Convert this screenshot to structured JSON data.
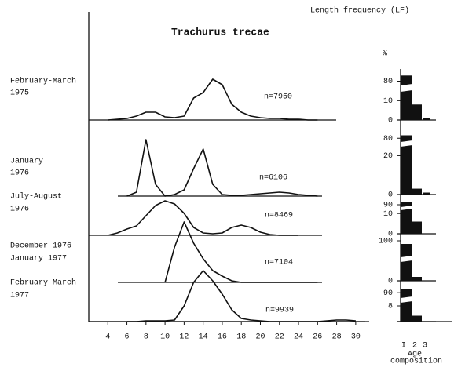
{
  "chart_data": [
    {
      "type": "line",
      "header": "Length frequency (LF)",
      "title": "Trachurus trecae",
      "x": [
        4,
        5,
        6,
        7,
        8,
        9,
        10,
        11,
        12,
        13,
        14,
        15,
        16,
        17,
        18,
        19,
        20,
        21,
        22,
        23,
        24,
        25,
        26,
        27,
        28,
        29,
        30
      ],
      "xlim": [
        2,
        31
      ],
      "xticks": [
        4,
        6,
        8,
        10,
        12,
        14,
        16,
        18,
        20,
        22,
        24,
        26,
        28,
        30
      ],
      "color": "#111111",
      "series": [
        {
          "name": [
            "February-March",
            "1975"
          ],
          "n_label": "n=7950",
          "values": [
            0,
            1,
            2,
            5,
            10,
            10,
            4,
            3,
            5,
            28,
            35,
            52,
            45,
            20,
            10,
            5,
            3,
            2,
            2,
            1,
            1,
            0,
            0,
            null,
            null,
            null,
            null
          ]
        },
        {
          "name": [
            "January",
            "1976"
          ],
          "n_label": "n=6106",
          "values": [
            null,
            null,
            0,
            5,
            72,
            15,
            0,
            2,
            8,
            35,
            60,
            15,
            2,
            1,
            1,
            2,
            3,
            4,
            5,
            4,
            2,
            1,
            0,
            null,
            null,
            null,
            null
          ]
        },
        {
          "name": [
            "July-August",
            "1976"
          ],
          "n_label": "n=8469",
          "values": [
            0,
            3,
            8,
            12,
            25,
            38,
            44,
            40,
            28,
            10,
            3,
            2,
            3,
            10,
            13,
            10,
            4,
            1,
            0,
            0,
            0,
            null,
            null,
            null,
            null,
            null,
            null
          ]
        },
        {
          "name": [
            "December 1976",
            "January  1977"
          ],
          "n_label": "n=7104",
          "values": [
            null,
            null,
            null,
            null,
            null,
            null,
            0,
            45,
            77,
            50,
            30,
            15,
            8,
            2,
            0,
            0,
            0,
            0,
            0,
            0,
            0,
            0,
            0,
            null,
            null,
            null,
            null
          ]
        },
        {
          "name": [
            "February-March",
            "1977"
          ],
          "n_label": "n=9939",
          "values": [
            null,
            null,
            0,
            0,
            1,
            1,
            1,
            2,
            20,
            50,
            65,
            52,
            35,
            15,
            4,
            2,
            1,
            0,
            0,
            0,
            0,
            0,
            0,
            1,
            2,
            2,
            1
          ]
        }
      ]
    },
    {
      "type": "bar",
      "ylabel": "%",
      "xlabel": [
        "Age",
        "composition"
      ],
      "categories": [
        "I",
        "2",
        "3"
      ],
      "color": "#111111",
      "panels": [
        {
          "ylim": [
            0,
            95
          ],
          "ybreak": [
            15,
            75
          ],
          "yticks": [
            0,
            10,
            80
          ],
          "values": [
            88,
            8,
            1
          ]
        },
        {
          "ylim": [
            0,
            95
          ],
          "ybreak": [
            25,
            75
          ],
          "yticks": [
            0,
            20,
            80
          ],
          "values": [
            85,
            3,
            1
          ]
        },
        {
          "ylim": [
            0,
            98
          ],
          "ybreak": [
            12,
            88
          ],
          "yticks": [
            0,
            10,
            90
          ],
          "values": [
            93,
            6,
            null
          ]
        },
        {
          "ylim": [
            0,
            100
          ],
          "ybreak": [
            10,
            90
          ],
          "yticks": [
            0,
            100
          ],
          "values": [
            98,
            2,
            null
          ]
        },
        {
          "ylim": [
            0,
            97
          ],
          "ybreak": [
            10,
            85
          ],
          "yticks": [
            8,
            90
          ],
          "values": [
            94,
            3,
            null
          ]
        }
      ]
    }
  ]
}
